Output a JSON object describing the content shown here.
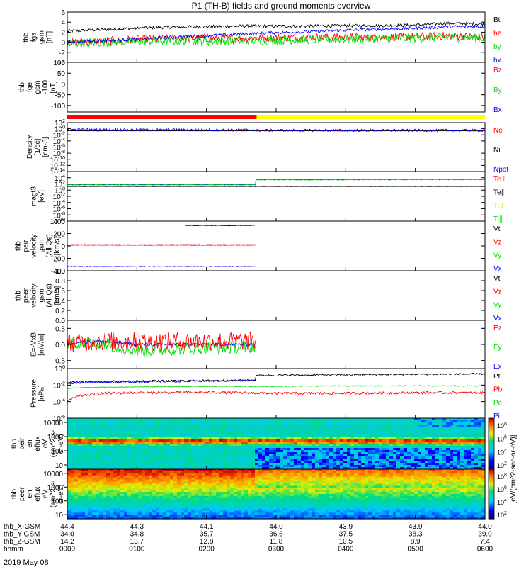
{
  "title": "P1 (TH-B) fields and ground moments overview",
  "date": "2019 May 08",
  "time_axis": {
    "start": "0000",
    "end": "0600",
    "ticks": [
      "0000",
      "0100",
      "0200",
      "0300",
      "0400",
      "0500",
      "0600"
    ],
    "rows": [
      {
        "label": "thb_X-GSM",
        "values": [
          "44.4",
          "44.3",
          "44.1",
          "44.0",
          "43.9",
          "43.9",
          "44.0"
        ]
      },
      {
        "label": "thb_Y-GSM",
        "values": [
          "34.0",
          "34.8",
          "35.7",
          "36.6",
          "37.5",
          "38.3",
          "39.0"
        ]
      },
      {
        "label": "thb_Z-GSM",
        "values": [
          "14.2",
          "13.7",
          "12.8",
          "11.8",
          "10.5",
          "8.9",
          "7.4"
        ]
      },
      {
        "label": "hhmm",
        "values": [
          "0000",
          "0100",
          "0200",
          "0300",
          "0400",
          "0500",
          "0600"
        ]
      }
    ]
  },
  "mode_bar": {
    "colors": [
      "#ff0000",
      "#ffff00"
    ],
    "switch_time": "0243"
  },
  "colorbar": {
    "label": "[eV/(cm^2-sec-sr-eV)]",
    "ticks_top": [
      "10^8",
      "10^6",
      "10^4",
      "10^2"
    ],
    "ticks_bottom": [
      "10^8",
      "10^6",
      "10^4",
      "10^2"
    ]
  },
  "colors": {
    "black": "#000000",
    "red": "#ff0000",
    "green": "#00dd00",
    "blue": "#0000ff"
  },
  "chart_data": [
    {
      "type": "line",
      "id": "fgs",
      "ylabel": [
        "thb",
        "fgs",
        "gsm",
        "[nT]"
      ],
      "ylim": [
        -4,
        6
      ],
      "yticks": [
        "6",
        "4",
        "2",
        "0",
        "-2",
        "-4"
      ],
      "legend": [
        {
          "name": "Bt",
          "color": "#000000"
        },
        {
          "name": "bz",
          "color": "#ff0000"
        },
        {
          "name": "by",
          "color": "#00dd00"
        },
        {
          "name": "bx",
          "color": "#0000ff"
        }
      ],
      "series": [
        {
          "name": "Bt",
          "color": "#000000",
          "x": [
            0,
            0.5,
            1,
            1.5,
            2,
            2.5,
            3,
            3.5,
            4,
            4.5,
            5,
            5.5,
            6
          ],
          "y": [
            2.2,
            2.5,
            2.8,
            3.0,
            3.1,
            3.2,
            3.2,
            3.2,
            3.3,
            3.3,
            3.4,
            3.8,
            3.6
          ],
          "noise": 0.3
        },
        {
          "name": "bz",
          "color": "#ff0000",
          "x": [
            0,
            0.5,
            1,
            1.5,
            2,
            2.5,
            3,
            3.5,
            4,
            4.5,
            5,
            5.5,
            6
          ],
          "y": [
            0.0,
            0.2,
            0.6,
            0.8,
            0.8,
            0.8,
            0.9,
            1.0,
            1.0,
            1.0,
            1.1,
            1.3,
            1.0
          ],
          "noise": 0.8
        },
        {
          "name": "by",
          "color": "#00dd00",
          "x": [
            0,
            0.5,
            1,
            1.5,
            2,
            2.5,
            3,
            3.5,
            4,
            4.5,
            5,
            5.5,
            6
          ],
          "y": [
            -0.3,
            0.0,
            0.2,
            0.3,
            0.2,
            0.3,
            0.4,
            0.5,
            0.6,
            0.7,
            0.8,
            1.0,
            0.8
          ],
          "noise": 0.9
        },
        {
          "name": "bx",
          "color": "#0000ff",
          "x": [
            0,
            0.5,
            1,
            1.5,
            2,
            2.5,
            3,
            3.5,
            4,
            4.5,
            5,
            5.5,
            6
          ],
          "y": [
            0.0,
            0.3,
            0.6,
            1.0,
            1.3,
            1.6,
            1.9,
            2.1,
            2.4,
            2.6,
            2.8,
            3.1,
            3.1
          ],
          "noise": 0.3
        }
      ]
    },
    {
      "type": "line",
      "id": "fge",
      "ylabel": [
        "thb",
        "fge",
        "gsm",
        "-100",
        "[nT]"
      ],
      "ylim": [
        -130,
        100
      ],
      "yticks": [
        "100",
        "50",
        "0",
        "-50",
        "-100"
      ],
      "legend": [
        {
          "name": "Bz",
          "color": "#ff0000"
        },
        {
          "name": "By",
          "color": "#00dd00"
        },
        {
          "name": "Bx",
          "color": "#0000ff"
        }
      ],
      "series": []
    },
    {
      "type": "line",
      "id": "density",
      "ylog": true,
      "ylabel": [
        "Density",
        "[1/cc]",
        "[cm-3]"
      ],
      "ylim": [
        1e-14,
        100
      ],
      "yticks": [
        "10^2",
        "10^0",
        "10^-2",
        "10^-4",
        "10^-6",
        "10^-8",
        "10^-10",
        "10^-12",
        "10^-14"
      ],
      "legend": [
        {
          "name": "Ne",
          "color": "#ff0000"
        },
        {
          "name": "Ni",
          "color": "#000000"
        },
        {
          "name": "Npot",
          "color": "#0000ff"
        }
      ],
      "series": [
        {
          "name": "Ne",
          "color": "#ff0000",
          "x": [
            0,
            2.7,
            2.7,
            6
          ],
          "y": [
            0.3,
            0.3,
            0.3,
            0.3
          ],
          "noise": 0.05
        },
        {
          "name": "Ni",
          "color": "#000000",
          "x": [
            0,
            2.7,
            2.7,
            6
          ],
          "y": [
            0.2,
            0.2,
            0.2,
            0.2
          ],
          "noise": 0.05
        },
        {
          "name": "Npot",
          "color": "#0000ff",
          "x": [
            0,
            2.7,
            2.7,
            6
          ],
          "y": [
            0.5,
            0.4,
            0.3,
            0.3
          ],
          "noise": 0.4
        }
      ]
    },
    {
      "type": "line",
      "id": "temperature",
      "ylog": true,
      "ylabel": [
        "magt3",
        "[eV]"
      ],
      "ylim": [
        1e-10,
        1000000.0
      ],
      "yticks": [
        "10^4",
        "10^2",
        "10^0",
        "10^-2",
        "10^-4",
        "10^-6",
        "10^-8",
        "10^-10"
      ],
      "legend": [
        {
          "name": "Te⊥",
          "color": "#ff0000"
        },
        {
          "name": "Te∥",
          "color": "#000000"
        },
        {
          "name": "Ti⊥",
          "color": "#dddd00"
        },
        {
          "name": "Ti∥",
          "color": "#00dd00"
        }
      ],
      "series": [
        {
          "name": "Te⊥",
          "color": "#ff0000",
          "x": [
            0,
            6
          ],
          "y": [
            20,
            20
          ],
          "noise": 0.05
        },
        {
          "name": "Te∥",
          "color": "#000000",
          "x": [
            0,
            6
          ],
          "y": [
            15,
            15
          ],
          "noise": 0.05
        },
        {
          "name": "Ti⊥",
          "color": "#0000ff",
          "x": [
            0,
            2.7,
            2.71,
            6
          ],
          "y": [
            60,
            60,
            2500,
            3000
          ],
          "noise": 0.1
        },
        {
          "name": "Ti∥",
          "color": "#00dd00",
          "x": [
            0,
            2.7,
            2.71,
            6
          ],
          "y": [
            50,
            50,
            2000,
            2500
          ],
          "noise": 0.1
        }
      ]
    },
    {
      "type": "line",
      "id": "peir_vel",
      "ylabel": [
        "thb",
        "peir",
        "velocity",
        "gsm",
        "(All Qs)",
        "[km/s]"
      ],
      "ylim": [
        -400,
        400
      ],
      "yticks": [
        "400",
        "200",
        "0",
        "-200",
        "-400"
      ],
      "legend": [
        {
          "name": "Vt",
          "color": "#000000"
        },
        {
          "name": "Vz",
          "color": "#ff0000"
        },
        {
          "name": "Vy",
          "color": "#00dd00"
        },
        {
          "name": "Vx",
          "color": "#0000ff"
        }
      ],
      "series": [
        {
          "name": "Vt",
          "color": "#000000",
          "x": [
            1.7,
            2.7
          ],
          "y": [
            330,
            330
          ],
          "noise": 5
        },
        {
          "name": "Vz",
          "color": "#ff0000",
          "x": [
            0,
            2.7
          ],
          "y": [
            20,
            20
          ],
          "noise": 4
        },
        {
          "name": "Vy",
          "color": "#00dd00",
          "x": [
            0,
            2.7
          ],
          "y": [
            10,
            10
          ],
          "noise": 4
        },
        {
          "name": "Vx",
          "color": "#0000ff",
          "x": [
            0,
            2.7
          ],
          "y": [
            -330,
            -330
          ],
          "noise": 5
        }
      ]
    },
    {
      "type": "line",
      "id": "peer_vel",
      "ylabel": [
        "thb",
        "peer",
        "velocity",
        "gsm",
        "(All Qs)",
        "[km/s]"
      ],
      "ylim": [
        0,
        1
      ],
      "yticks": [
        "1.0",
        "0.8",
        "0.6",
        "0.4",
        "0.2",
        "0.0"
      ],
      "legend": [
        {
          "name": "Vt",
          "color": "#000000"
        },
        {
          "name": "Vz",
          "color": "#ff0000"
        },
        {
          "name": "Vy",
          "color": "#00dd00"
        },
        {
          "name": "Vx",
          "color": "#0000ff"
        }
      ],
      "series": []
    },
    {
      "type": "line",
      "id": "efield",
      "ylabel": [
        "E=-VxB",
        "[mV/m]"
      ],
      "ylim": [
        -0.75,
        0.75
      ],
      "yticks": [
        "0.5",
        "0.0",
        "-0.5"
      ],
      "legend": [
        {
          "name": "Ez",
          "color": "#ff0000"
        },
        {
          "name": "Ey",
          "color": "#00dd00"
        },
        {
          "name": "Ex",
          "color": "#0000ff"
        }
      ],
      "series": [
        {
          "name": "Ex",
          "color": "#0000ff",
          "x": [
            0,
            0.5,
            1,
            1.5,
            2,
            2.5,
            2.7
          ],
          "y": [
            0.05,
            0.1,
            0.0,
            0.0,
            0.0,
            0.0,
            0.0
          ],
          "noise": 0.05
        },
        {
          "name": "Ey",
          "color": "#00dd00",
          "x": [
            0,
            0.5,
            1,
            1.5,
            2,
            2.5,
            2.7
          ],
          "y": [
            0.05,
            0.05,
            -0.2,
            -0.15,
            -0.1,
            -0.1,
            -0.05
          ],
          "noise": 0.2
        },
        {
          "name": "Ez",
          "color": "#ff0000",
          "x": [
            0,
            0.5,
            1,
            1.5,
            2,
            2.5,
            2.7
          ],
          "y": [
            0.05,
            0.1,
            0.1,
            0.1,
            0.1,
            0.1,
            0.1
          ],
          "noise": 0.3
        }
      ]
    },
    {
      "type": "line",
      "id": "pressure",
      "ylog": true,
      "ylabel": [
        "Pressure",
        "[nPa]"
      ],
      "ylim": [
        1e-06,
        1
      ],
      "yticks": [
        "10^0",
        "10^-2",
        "10^-4",
        "10^-6"
      ],
      "legend": [
        {
          "name": "Pt",
          "color": "#000000"
        },
        {
          "name": "Pb",
          "color": "#ff0000"
        },
        {
          "name": "Pe",
          "color": "#00dd00"
        },
        {
          "name": "Pi",
          "color": "#0000ff"
        }
      ],
      "series": [
        {
          "name": "Pt",
          "color": "#000000",
          "x": [
            0,
            0.2,
            1,
            2,
            2.7,
            2.71,
            4,
            5,
            6
          ],
          "y": [
            0.02,
            0.025,
            0.03,
            0.035,
            0.04,
            0.15,
            0.18,
            0.2,
            0.22
          ],
          "noise": 0.1
        },
        {
          "name": "Pb",
          "color": "#ff0000",
          "x": [
            0,
            0.2,
            0.5,
            1,
            2,
            3,
            4,
            5,
            6
          ],
          "y": [
            0.0001,
            0.0005,
            0.001,
            0.0012,
            0.0013,
            0.001,
            0.001,
            0.0012,
            0.0012
          ],
          "noise": 0.15
        },
        {
          "name": "Pe",
          "color": "#00dd00",
          "x": [
            0,
            0.2,
            1,
            2,
            3,
            4,
            5,
            6
          ],
          "y": [
            0.004,
            0.005,
            0.006,
            0.007,
            0.007,
            0.008,
            0.008,
            0.008
          ],
          "noise": 0.05
        },
        {
          "name": "Pi",
          "color": "#0000ff",
          "x": [
            0,
            0.2,
            1,
            2,
            2.7
          ],
          "y": [
            0.015,
            0.02,
            0.025,
            0.03,
            0.035
          ],
          "noise": 0.1
        }
      ]
    },
    {
      "type": "heatmap",
      "id": "peir_spec",
      "ylabel": [
        "thb",
        "peir",
        "en",
        "eflux",
        "eV",
        "(cm^2-s-",
        "sr-eV)"
      ],
      "ylim": [
        5,
        20000
      ],
      "yticks": [
        "10000",
        "1000",
        "100",
        "10"
      ],
      "description_levels": "ion energy flux"
    },
    {
      "type": "heatmap",
      "id": "peer_spec",
      "ylabel": [
        "thb",
        "peer",
        "en",
        "eflux",
        "eV",
        "(cm^2-s-",
        "sr-eV)"
      ],
      "ylim": [
        5,
        20000
      ],
      "yticks": [
        "10000",
        "1000",
        "100",
        "10"
      ],
      "description_levels": "electron energy flux"
    }
  ]
}
